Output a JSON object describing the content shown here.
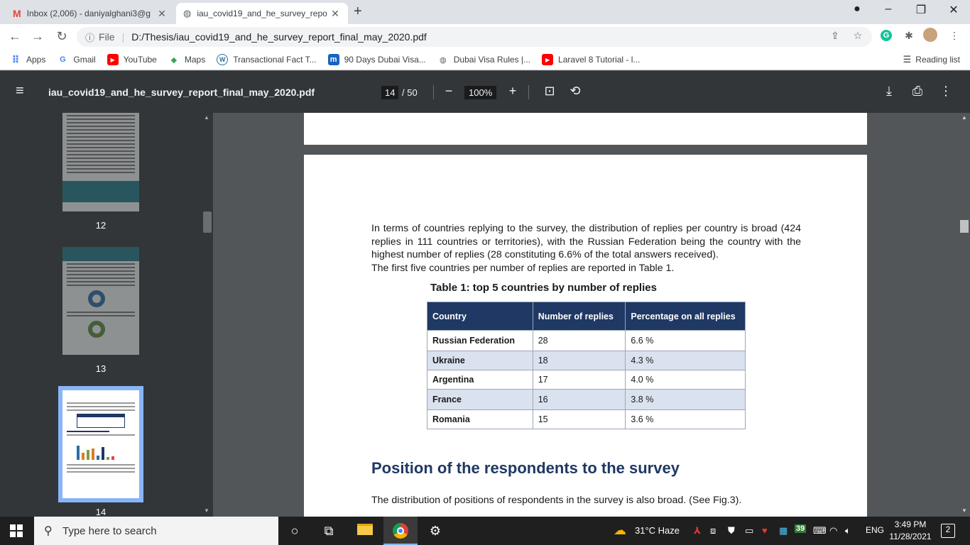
{
  "tabs": [
    {
      "title": "Inbox (2,006) - daniyalghani3@g",
      "icon": "gmail-icon"
    },
    {
      "title": "iau_covid19_and_he_survey_repo",
      "icon": "globe-icon"
    }
  ],
  "address": {
    "info": "ⓘ",
    "scheme": "File",
    "url": "D:/Thesis/iau_covid19_and_he_survey_report_final_may_2020.pdf"
  },
  "bookmarks": [
    {
      "label": "Apps",
      "icon": "apps-icon"
    },
    {
      "label": "Gmail",
      "icon": "google-icon"
    },
    {
      "label": "YouTube",
      "icon": "youtube-icon"
    },
    {
      "label": "Maps",
      "icon": "maps-icon"
    },
    {
      "label": "Transactional Fact T...",
      "icon": "wordpress-icon"
    },
    {
      "label": "90 Days Dubai Visa...",
      "icon": "m-icon"
    },
    {
      "label": "Dubai Visa Rules |...",
      "icon": "globe-icon"
    },
    {
      "label": "Laravel 8 Tutorial - l...",
      "icon": "youtube-icon"
    }
  ],
  "reading_list": "Reading list",
  "pdf": {
    "filename": "iau_covid19_and_he_survey_report_final_may_2020.pdf",
    "page_current": "14",
    "page_total": "/ 50",
    "zoom": "100%"
  },
  "thumbnails": [
    {
      "number": "12"
    },
    {
      "number": "13"
    },
    {
      "number": "14"
    }
  ],
  "document": {
    "paragraph1": "In terms of countries replying to the survey, the distribution of replies per country is broad (424 replies in 111 countries or territories), with the Russian Federation being the country with the highest number of replies (28 constituting 6.6% of the total answers received).",
    "paragraph1b": "The first five countries per number of replies are reported in Table 1.",
    "table_caption": "Table 1: top 5 countries by number of replies",
    "table_headers": [
      "Country",
      "Number of replies",
      "Percentage on all replies"
    ],
    "table_rows": [
      [
        "Russian Federation",
        "28",
        "6.6 %"
      ],
      [
        "Ukraine",
        "18",
        "4.3 %"
      ],
      [
        "Argentina",
        "17",
        "4.0 %"
      ],
      [
        "France",
        "16",
        "3.8 %"
      ],
      [
        "Romania",
        "15",
        "3.6 %"
      ]
    ],
    "section_heading": "Position of the respondents to the survey",
    "paragraph2": "The distribution of positions of respondents in the survey is also broad. (See Fig.3)."
  },
  "taskbar": {
    "search_placeholder": "Type here to search",
    "weather": "31°C  Haze",
    "language": "ENG",
    "time": "3:49 PM",
    "date": "11/28/2021",
    "notifications": "2",
    "badge": "39"
  }
}
